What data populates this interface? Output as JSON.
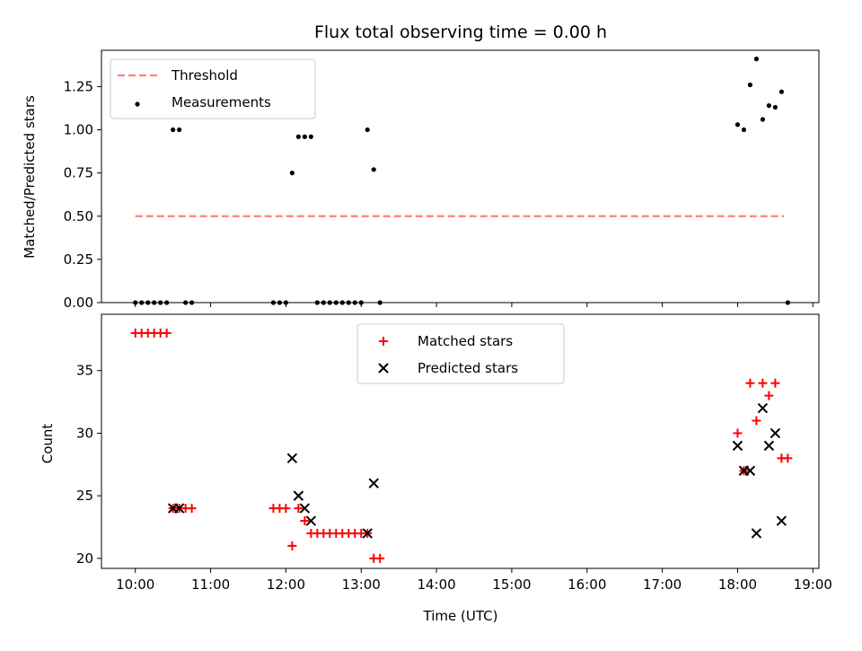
{
  "chart_data": [
    {
      "type": "scatter",
      "title": "Flux total observing time = 0.00 h",
      "xlabel": "",
      "ylabel": "Matched/Predicted stars",
      "xlim_hours": [
        9.55,
        19.08
      ],
      "ylim": [
        0,
        1.46
      ],
      "yticks": [
        "0.00",
        "0.25",
        "0.50",
        "0.75",
        "1.00",
        "1.25"
      ],
      "legend": {
        "position": "upper left",
        "entries": [
          "Threshold",
          "Measurements"
        ]
      },
      "colors": {
        "threshold": "#ff7f7f",
        "measurements": "#000000"
      },
      "threshold": {
        "name": "Threshold",
        "x": [
          "10:00",
          "18:37"
        ],
        "y": 0.5,
        "style": "dashed"
      },
      "series": [
        {
          "name": "Measurements",
          "x": [
            "10:00",
            "10:05",
            "10:10",
            "10:15",
            "10:20",
            "10:25",
            "10:30",
            "10:35",
            "10:40",
            "10:45",
            "11:50",
            "11:55",
            "12:00",
            "12:05",
            "12:10",
            "12:15",
            "12:20",
            "12:25",
            "12:30",
            "12:35",
            "12:40",
            "12:45",
            "12:50",
            "12:55",
            "13:00",
            "13:05",
            "13:10",
            "13:15",
            "18:00",
            "18:05",
            "18:10",
            "18:15",
            "18:20",
            "18:25",
            "18:30",
            "18:35",
            "18:40"
          ],
          "y": [
            0,
            0,
            0,
            0,
            0,
            0,
            1.0,
            1.0,
            0,
            0,
            0,
            0,
            0,
            0.75,
            0.96,
            0.96,
            0.96,
            0,
            0,
            0,
            0,
            0,
            0,
            0,
            0,
            1.0,
            0.77,
            0,
            1.03,
            1.0,
            1.26,
            1.41,
            1.06,
            1.14,
            1.13,
            1.22,
            0
          ]
        }
      ]
    },
    {
      "type": "scatter",
      "title": "",
      "xlabel": "Time (UTC)",
      "ylabel": "Count",
      "xlim_hours": [
        9.55,
        19.08
      ],
      "ylim": [
        19.2,
        39.5
      ],
      "xticks": [
        "10:00",
        "11:00",
        "12:00",
        "13:00",
        "14:00",
        "15:00",
        "16:00",
        "17:00",
        "18:00",
        "19:00"
      ],
      "yticks": [
        "20",
        "25",
        "30",
        "35"
      ],
      "legend": {
        "position": "upper center",
        "entries": [
          "Matched stars",
          "Predicted stars"
        ]
      },
      "colors": {
        "matched": "#ff0000",
        "predicted": "#000000"
      },
      "series": [
        {
          "name": "Matched stars",
          "marker": "plus",
          "x": [
            "10:00",
            "10:05",
            "10:10",
            "10:15",
            "10:20",
            "10:25",
            "10:30",
            "10:35",
            "10:40",
            "10:45",
            "11:50",
            "11:55",
            "12:00",
            "12:05",
            "12:10",
            "12:15",
            "12:20",
            "12:25",
            "12:30",
            "12:35",
            "12:40",
            "12:45",
            "12:50",
            "12:55",
            "13:00",
            "13:05",
            "13:10",
            "13:15",
            "18:00",
            "18:05",
            "18:10",
            "18:15",
            "18:20",
            "18:25",
            "18:30",
            "18:35",
            "18:40"
          ],
          "y": [
            38,
            38,
            38,
            38,
            38,
            38,
            24,
            24,
            24,
            24,
            24,
            24,
            24,
            21,
            24,
            23,
            22,
            22,
            22,
            22,
            22,
            22,
            22,
            22,
            22,
            22,
            20,
            20,
            30,
            27,
            34,
            31,
            34,
            33,
            34,
            28,
            28
          ]
        },
        {
          "name": "Predicted stars",
          "marker": "x",
          "x": [
            "10:30",
            "10:35",
            "12:05",
            "12:10",
            "12:15",
            "12:20",
            "13:05",
            "13:10",
            "18:00",
            "18:05",
            "18:10",
            "18:15",
            "18:20",
            "18:25",
            "18:30",
            "18:35"
          ],
          "y": [
            24,
            24,
            28,
            25,
            24,
            23,
            22,
            26,
            29,
            27,
            27,
            22,
            32,
            29,
            30,
            23
          ]
        }
      ]
    }
  ]
}
